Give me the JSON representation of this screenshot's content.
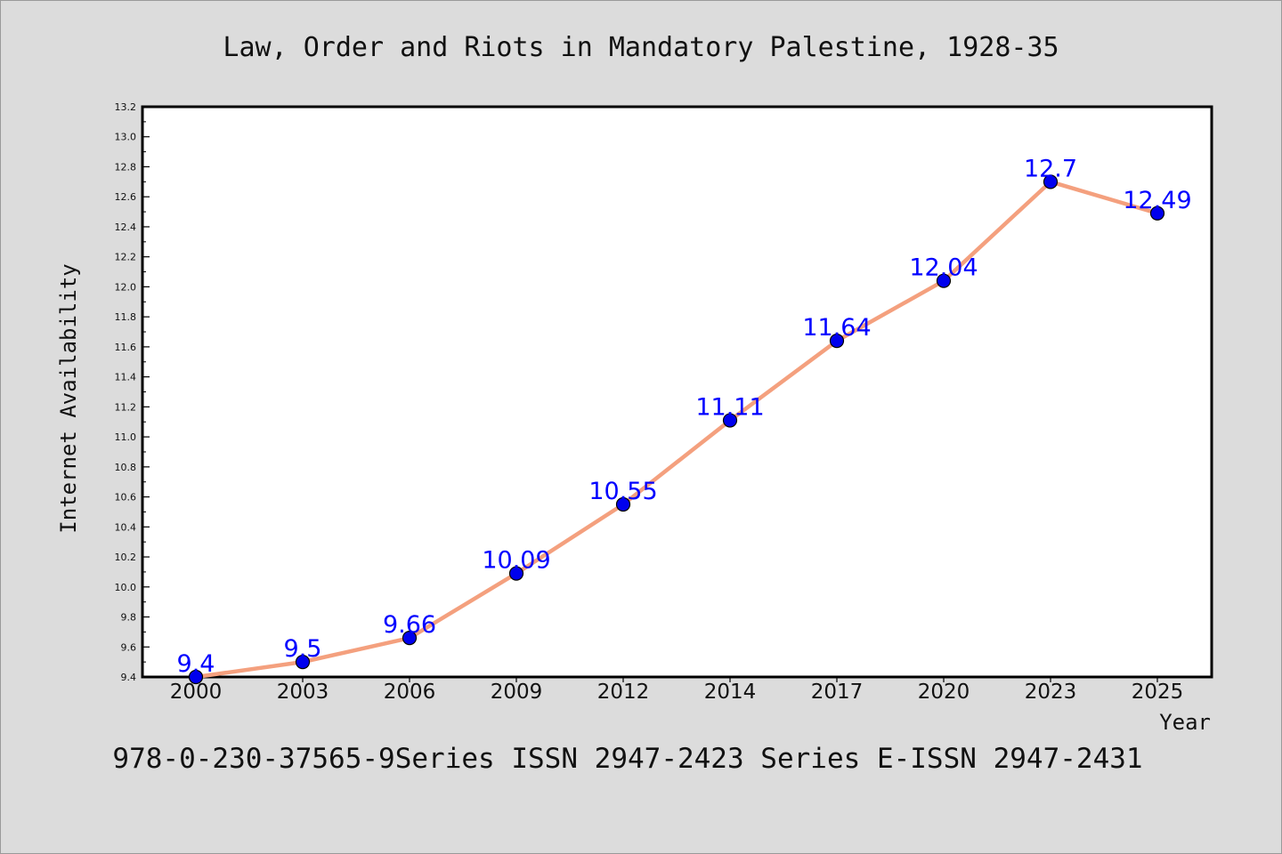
{
  "chart_data": {
    "type": "line",
    "title": "Law, Order and Riots in Mandatory Palestine, 1928-35",
    "xlabel": "Year",
    "ylabel": "Internet Availability",
    "categories": [
      "2000",
      "2003",
      "2006",
      "2009",
      "2012",
      "2014",
      "2017",
      "2020",
      "2023",
      "2025"
    ],
    "values": [
      9.4,
      9.5,
      9.66,
      10.09,
      10.55,
      11.11,
      11.64,
      12.04,
      12.7,
      12.49
    ],
    "data_labels": [
      "9.4",
      "9.5",
      "9.66",
      "10.09",
      "10.55",
      "11.11",
      "11.64",
      "12.04",
      "12.7",
      "12.49"
    ],
    "ylim": [
      9.4,
      13.2
    ],
    "yticks": [
      9.4,
      9.6,
      9.8,
      10.0,
      10.2,
      10.4,
      10.6,
      10.8,
      11.0,
      11.2,
      11.4,
      11.6,
      11.8,
      12.0,
      12.2,
      12.4,
      12.6,
      12.8,
      13.0,
      13.2
    ],
    "ytick_labels": [
      "9.4",
      "9.6",
      "9.8",
      "10.0",
      "10.2",
      "10.4",
      "10.6",
      "10.8",
      "11.0",
      "11.2",
      "11.4",
      "11.6",
      "11.8",
      "12.0",
      "12.2",
      "12.4",
      "12.6",
      "12.8",
      "13.0",
      "13.2"
    ],
    "grid": false,
    "line_color": "#f4a07e",
    "marker_color": "#0000ee",
    "label_color": "#0000ff",
    "background": "#dcdcdc",
    "plot_background": "#ffffff"
  },
  "footer": {
    "text": "978-0-230-37565-9Series ISSN 2947-2423 Series E-ISSN 2947-2431"
  }
}
